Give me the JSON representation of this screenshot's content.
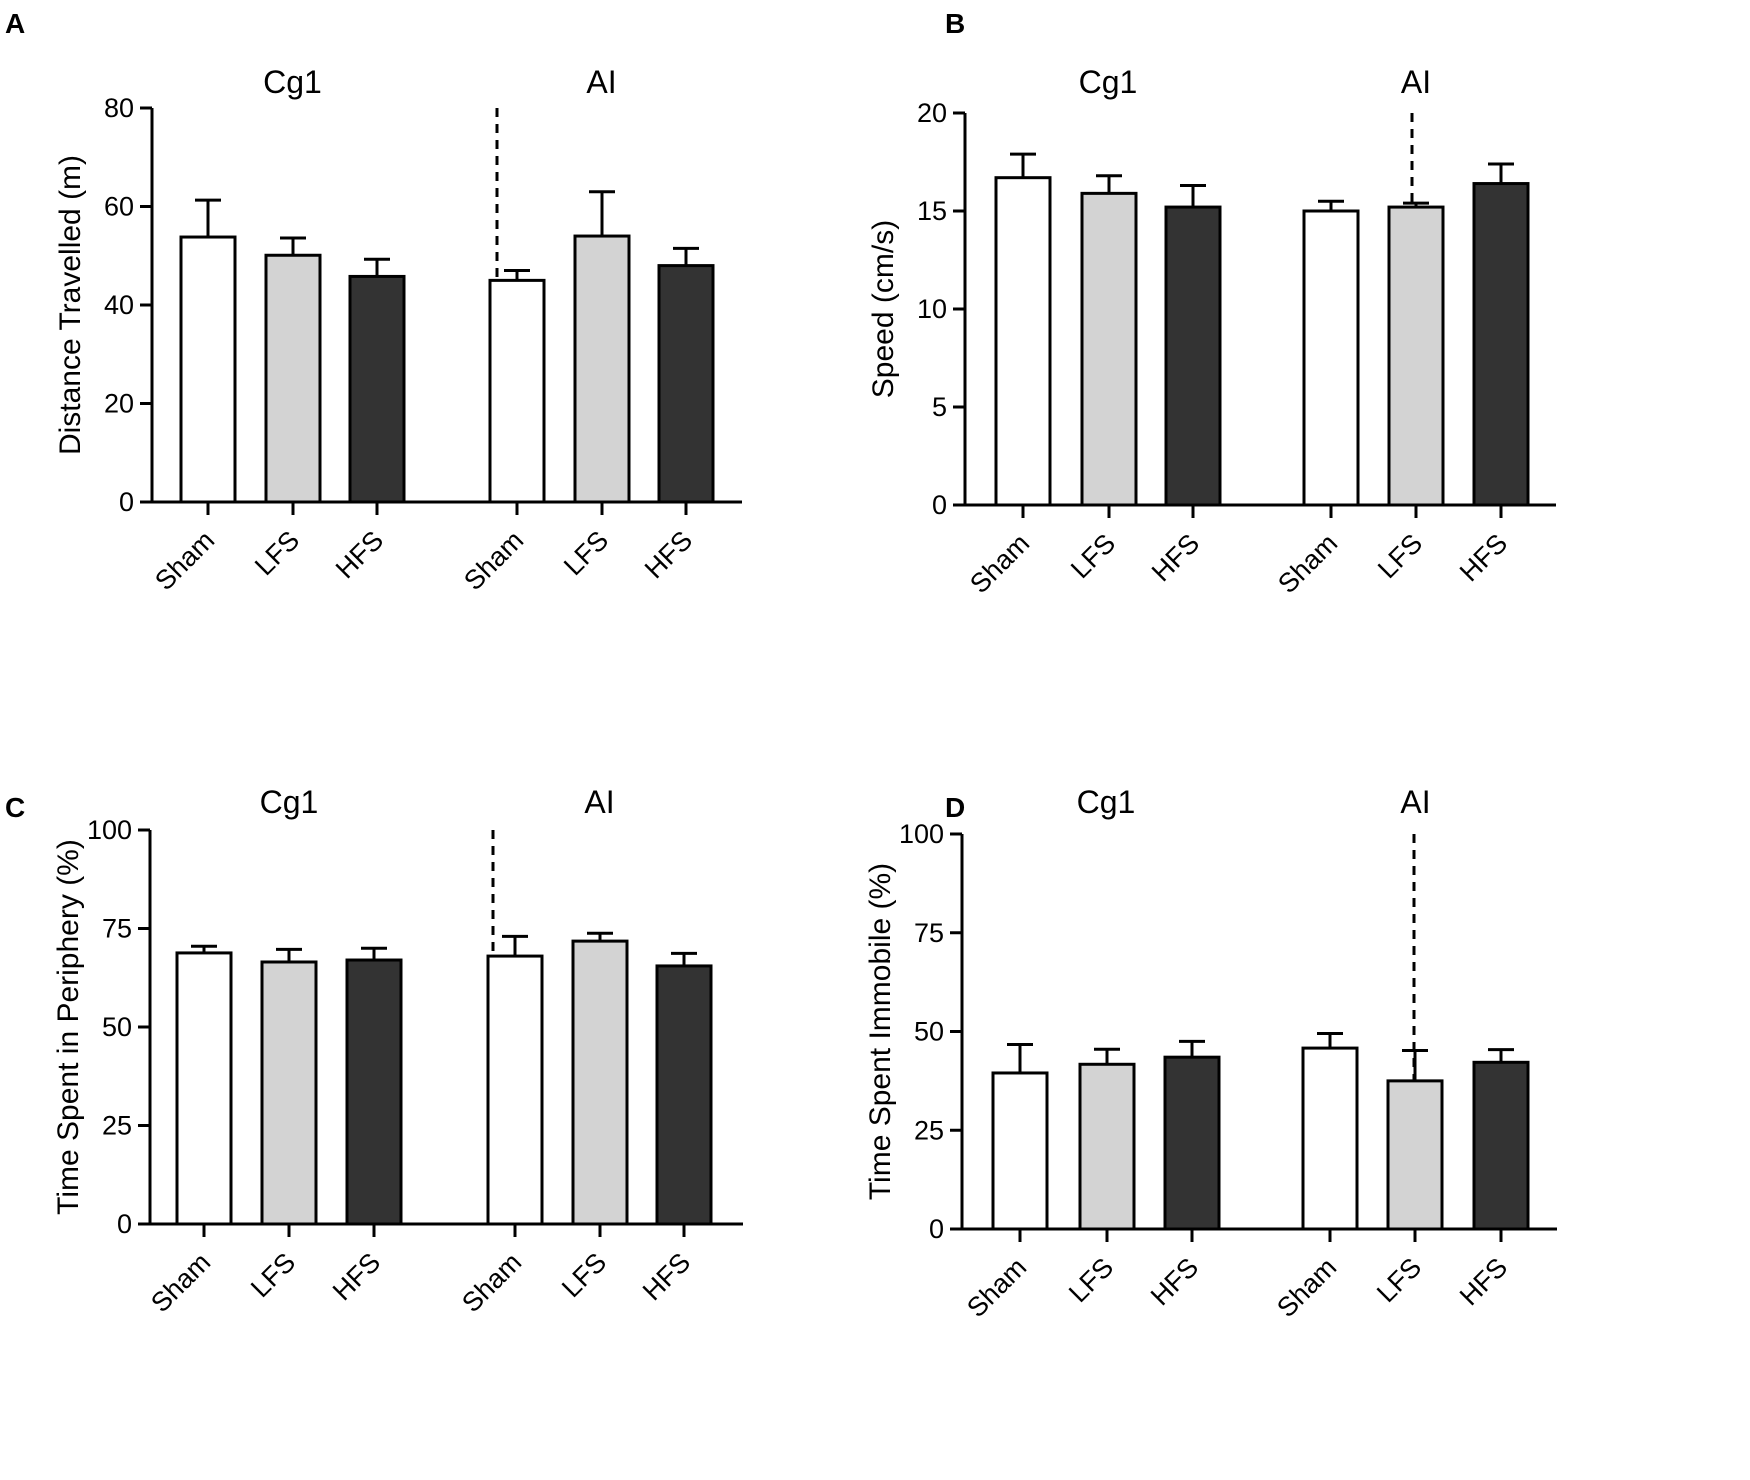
{
  "figure": {
    "colors": {
      "Sham": "#ffffff",
      "LFS": "#d3d3d3",
      "HFS": "#333333",
      "axis": "#000000"
    }
  },
  "chart_data": [
    {
      "panel": "A",
      "type": "bar",
      "ylabel": "Distance Travelled (m)",
      "ylim": [
        0,
        80
      ],
      "yticks": [
        0,
        20,
        40,
        60,
        80
      ],
      "groups": [
        {
          "name": "Cg1",
          "categories": [
            "Sham",
            "LFS",
            "HFS"
          ],
          "values": [
            53.8,
            50.1,
            45.8
          ],
          "errors": [
            7.5,
            3.5,
            3.5
          ]
        },
        {
          "name": "AI",
          "categories": [
            "Sham",
            "LFS",
            "HFS"
          ],
          "values": [
            45.0,
            54.0,
            48.0
          ],
          "errors": [
            2.0,
            9.0,
            3.5
          ]
        }
      ]
    },
    {
      "panel": "B",
      "type": "bar",
      "ylabel": "Speed (cm/s)",
      "ylim": [
        0,
        20
      ],
      "yticks": [
        0,
        5,
        10,
        15,
        20
      ],
      "groups": [
        {
          "name": "Cg1",
          "categories": [
            "Sham",
            "LFS",
            "HFS"
          ],
          "values": [
            16.7,
            15.9,
            15.2
          ],
          "errors": [
            1.2,
            0.9,
            1.1
          ]
        },
        {
          "name": "AI",
          "categories": [
            "Sham",
            "LFS",
            "HFS"
          ],
          "values": [
            15.0,
            15.2,
            16.4
          ],
          "errors": [
            0.5,
            0.2,
            1.0
          ]
        }
      ]
    },
    {
      "panel": "C",
      "type": "bar",
      "ylabel": "Time Spent in Periphery (%)",
      "ylim": [
        0,
        100
      ],
      "yticks": [
        0,
        25,
        50,
        75,
        100
      ],
      "groups": [
        {
          "name": "Cg1",
          "categories": [
            "Sham",
            "LFS",
            "HFS"
          ],
          "values": [
            68.8,
            66.5,
            67.0
          ],
          "errors": [
            1.7,
            3.2,
            3.0
          ]
        },
        {
          "name": "AI",
          "categories": [
            "Sham",
            "LFS",
            "HFS"
          ],
          "values": [
            68.0,
            71.8,
            65.5
          ],
          "errors": [
            5.0,
            2.0,
            3.2
          ]
        }
      ]
    },
    {
      "panel": "D",
      "type": "bar",
      "ylabel": "Time Spent Immobile (%)",
      "ylim": [
        0,
        100
      ],
      "yticks": [
        0,
        25,
        50,
        75,
        100
      ],
      "groups": [
        {
          "name": "Cg1",
          "categories": [
            "Sham",
            "LFS",
            "HFS"
          ],
          "values": [
            39.5,
            41.7,
            43.5
          ],
          "errors": [
            7.2,
            3.8,
            4.0
          ]
        },
        {
          "name": "AI",
          "categories": [
            "Sham",
            "LFS",
            "HFS"
          ],
          "values": [
            45.8,
            37.5,
            42.2
          ],
          "errors": [
            3.7,
            7.7,
            3.2
          ]
        }
      ]
    }
  ]
}
